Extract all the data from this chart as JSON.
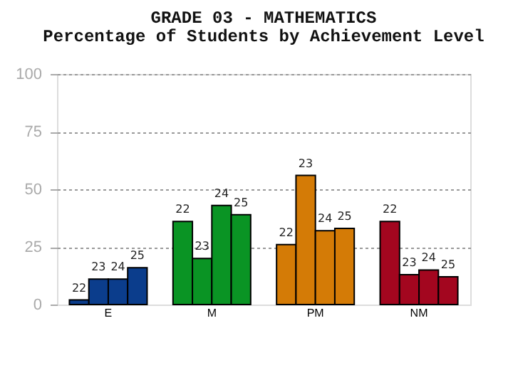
{
  "chart_data": {
    "type": "bar",
    "title": "GRADE 03 - MATHEMATICS",
    "subtitle": "Percentage of Students by Achievement Level",
    "categories": [
      "E",
      "M",
      "PM",
      "NM"
    ],
    "series": [
      {
        "name": "22",
        "colors": [
          "#0b3d8c",
          "#0a9424",
          "#d47b06",
          "#a3061f"
        ],
        "values": [
          2,
          36,
          26,
          36
        ]
      },
      {
        "name": "23",
        "colors": [
          "#0b3d8c",
          "#0a9424",
          "#d47b06",
          "#a3061f"
        ],
        "values": [
          11,
          20,
          56,
          13
        ]
      },
      {
        "name": "24",
        "colors": [
          "#0b3d8c",
          "#0a9424",
          "#d47b06",
          "#a3061f"
        ],
        "values": [
          11,
          43,
          32,
          15
        ]
      },
      {
        "name": "25",
        "colors": [
          "#0b3d8c",
          "#0a9424",
          "#d47b06",
          "#a3061f"
        ],
        "values": [
          16,
          39,
          33,
          12
        ]
      }
    ],
    "ylim": [
      0,
      100
    ],
    "yticks": [
      0,
      25,
      50,
      75,
      100
    ],
    "grid": "y"
  }
}
